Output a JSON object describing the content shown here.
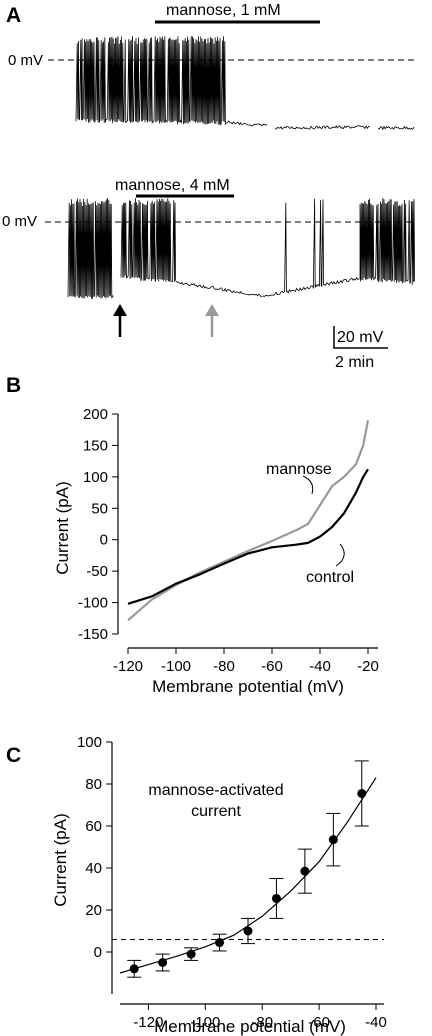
{
  "figure": {
    "panel_a": {
      "letter": "A",
      "trace1": {
        "treatment_label": "mannose, 1 mM",
        "zero_label": "0 mV"
      },
      "trace2": {
        "treatment_label": "mannose, 4 mM",
        "zero_label": "0 mV"
      },
      "scalebar": {
        "voltage_label": "20 mV",
        "time_label": "2 min"
      },
      "arrows": [
        {
          "color": "#000000"
        },
        {
          "color": "#999999"
        }
      ]
    },
    "panel_b": {
      "letter": "B"
    },
    "panel_c": {
      "letter": "C"
    }
  },
  "chart_data": [
    {
      "type": "line",
      "panel": "B",
      "xlabel": "Membrane potential (mV)",
      "ylabel": "Current (pA)",
      "xlim": [
        -120,
        -20
      ],
      "ylim": [
        -150,
        200
      ],
      "xticks": [
        -120,
        -100,
        -80,
        -60,
        -40,
        -20
      ],
      "yticks": [
        -150,
        -100,
        -50,
        0,
        50,
        100,
        150,
        200
      ],
      "series": [
        {
          "name": "control",
          "color": "#000000",
          "x": [
            -120,
            -110,
            -100,
            -90,
            -80,
            -70,
            -60,
            -50,
            -45,
            -40,
            -35,
            -30,
            -25,
            -22,
            -20
          ],
          "y": [
            -102,
            -90,
            -70,
            -55,
            -38,
            -22,
            -12,
            -8,
            -5,
            5,
            20,
            42,
            75,
            100,
            112
          ]
        },
        {
          "name": "mannose",
          "color": "#999999",
          "x": [
            -120,
            -110,
            -100,
            -90,
            -80,
            -70,
            -60,
            -50,
            -45,
            -40,
            -35,
            -30,
            -25,
            -22,
            -20
          ],
          "y": [
            -128,
            -95,
            -72,
            -52,
            -35,
            -18,
            -2,
            15,
            25,
            55,
            85,
            100,
            120,
            150,
            190
          ]
        }
      ]
    },
    {
      "type": "scatter",
      "panel": "C",
      "annotation": "mannose-activated current",
      "xlabel": "Membrane potential (mV)",
      "ylabel": "Current (pA)",
      "xlim": [
        -130,
        -40
      ],
      "ylim": [
        -20,
        100
      ],
      "xticks": [
        -120,
        -100,
        -80,
        -60,
        -40
      ],
      "yticks": [
        0,
        20,
        40,
        60,
        80,
        100
      ],
      "points": {
        "x": [
          -125,
          -115,
          -105,
          -95,
          -85,
          -75,
          -65,
          -55,
          -45
        ],
        "y": [
          -8,
          -5,
          -1,
          4.5,
          10,
          25.5,
          38.5,
          53.5,
          75.5
        ],
        "err": [
          4,
          4,
          3,
          4,
          6,
          9.5,
          10.5,
          12.5,
          15.5
        ]
      },
      "fit": {
        "x": [
          -130,
          -120,
          -110,
          -100,
          -90,
          -80,
          -70,
          -60,
          -50,
          -40
        ],
        "y": [
          -10,
          -6,
          -2,
          2.5,
          8,
          17,
          29,
          43,
          62,
          83
        ]
      }
    }
  ]
}
